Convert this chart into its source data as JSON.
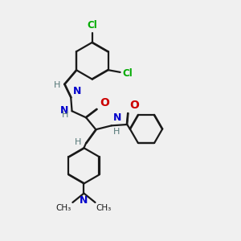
{
  "bg_color": "#f0f0f0",
  "bond_color": "#1a1a1a",
  "atom_colors": {
    "N": "#0000cc",
    "O": "#cc0000",
    "Cl": "#00aa00",
    "C": "#1a1a1a",
    "H": "#557777"
  },
  "figsize": [
    3.0,
    3.0
  ],
  "dpi": 100
}
